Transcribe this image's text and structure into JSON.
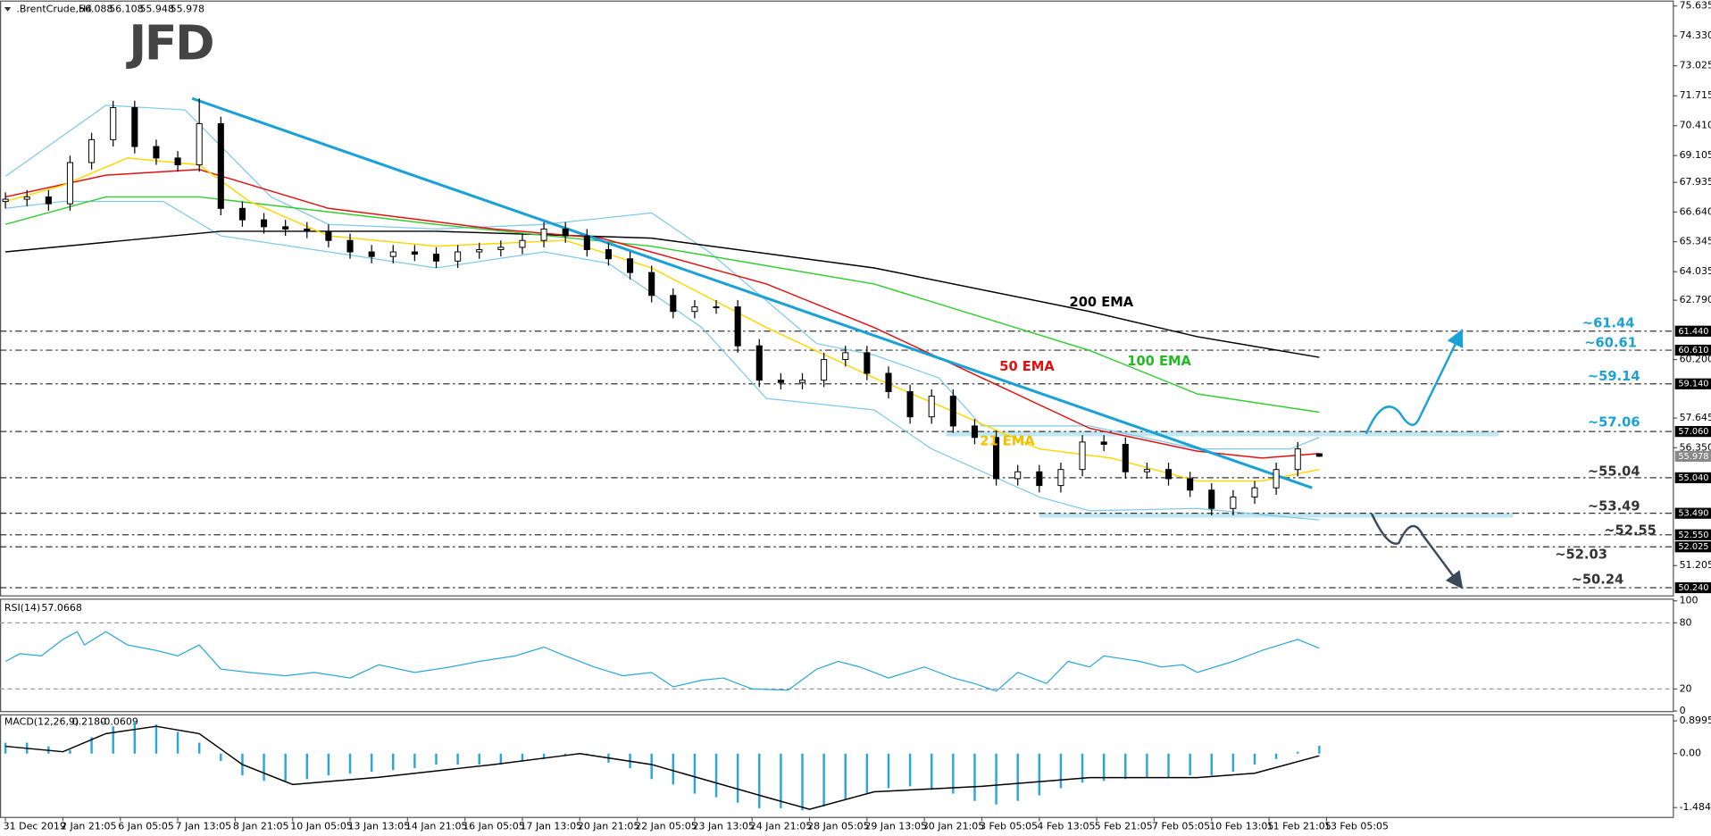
{
  "chart_data": [
    {
      "type": "candlestick",
      "symbol": ".BrentCrude,H4",
      "header_values": [
        56.088,
        56.108,
        55.948,
        55.978
      ],
      "logo": "JFD",
      "x": [
        0,
        3,
        6,
        9,
        12,
        15,
        18,
        21,
        24,
        27,
        30,
        33,
        36,
        39,
        42,
        45,
        48,
        51,
        54,
        57,
        60,
        63,
        66,
        69,
        72,
        75,
        78,
        81,
        84,
        87,
        90,
        93,
        96,
        99,
        102,
        105,
        108,
        111,
        114,
        117,
        120,
        123,
        126,
        129,
        132,
        135,
        138,
        141,
        144,
        147,
        150,
        153,
        156,
        159,
        162,
        165,
        168,
        171,
        174,
        177,
        180,
        183
      ],
      "open": [
        67.1,
        67.2,
        67.3,
        67.0,
        68.8,
        69.8,
        71.2,
        69.5,
        69.0,
        68.7,
        70.5,
        66.8,
        66.3,
        66.0,
        65.9,
        65.8,
        65.4,
        64.9,
        64.7,
        64.9,
        64.8,
        64.5,
        64.9,
        65.0,
        65.1,
        65.4,
        65.9,
        65.6,
        65.0,
        64.6,
        64.0,
        63.0,
        62.3,
        62.5,
        62.5,
        60.8,
        59.3,
        59.2,
        59.3,
        60.2,
        60.5,
        59.6,
        58.8,
        57.7,
        58.6,
        57.3,
        56.8,
        55.0,
        55.3,
        54.7,
        55.4,
        56.6,
        56.5,
        55.3,
        55.4,
        55.0,
        54.5,
        53.7,
        54.2,
        54.6,
        55.4,
        56.088
      ],
      "high": [
        67.5,
        67.6,
        67.6,
        69.1,
        70.1,
        71.5,
        71.5,
        69.8,
        69.3,
        71.6,
        70.8,
        67.1,
        66.6,
        66.3,
        66.2,
        66.1,
        65.7,
        65.2,
        65.2,
        65.2,
        65.1,
        65.2,
        65.3,
        65.4,
        65.7,
        66.2,
        66.2,
        65.9,
        65.3,
        64.9,
        64.3,
        63.3,
        62.8,
        62.8,
        62.8,
        61.1,
        59.6,
        59.6,
        60.5,
        60.8,
        60.8,
        59.9,
        59.1,
        58.9,
        58.9,
        57.6,
        57.1,
        55.6,
        55.6,
        55.7,
        56.9,
        56.9,
        56.8,
        55.7,
        55.7,
        55.3,
        54.8,
        54.5,
        54.9,
        55.7,
        56.6,
        56.108
      ],
      "low": [
        66.8,
        66.9,
        66.7,
        66.7,
        68.5,
        69.5,
        69.2,
        68.7,
        68.4,
        68.4,
        66.5,
        66.0,
        65.7,
        65.6,
        65.5,
        65.1,
        64.6,
        64.4,
        64.4,
        64.5,
        64.2,
        64.2,
        64.6,
        64.7,
        64.8,
        65.1,
        65.3,
        64.7,
        64.3,
        63.7,
        62.7,
        62.0,
        62.0,
        62.2,
        60.5,
        59.0,
        58.9,
        58.9,
        59.0,
        59.9,
        59.3,
        58.5,
        57.4,
        57.4,
        57.0,
        56.5,
        54.7,
        54.7,
        54.4,
        54.4,
        55.1,
        56.2,
        55.0,
        55.0,
        54.7,
        54.2,
        53.4,
        53.4,
        53.9,
        54.3,
        55.1,
        55.948
      ],
      "close": [
        67.2,
        67.3,
        67.0,
        68.8,
        69.8,
        71.2,
        69.5,
        69.0,
        68.7,
        70.5,
        66.8,
        66.3,
        66.0,
        65.9,
        65.8,
        65.4,
        64.9,
        64.7,
        64.9,
        64.8,
        64.5,
        64.9,
        65.0,
        65.1,
        65.4,
        65.9,
        65.6,
        65.0,
        64.6,
        64.0,
        63.0,
        62.3,
        62.5,
        62.5,
        60.8,
        59.3,
        59.2,
        59.3,
        60.2,
        60.5,
        59.6,
        58.8,
        57.7,
        58.6,
        57.3,
        56.8,
        55.0,
        55.3,
        54.7,
        55.4,
        56.6,
        56.5,
        55.3,
        55.4,
        55.0,
        54.5,
        53.7,
        54.2,
        54.6,
        55.4,
        56.3,
        55.978
      ],
      "up_color": "#ffffff",
      "down_color": "#000000",
      "xlim": [
        0,
        233
      ],
      "xticks": [
        {
          "value": 0,
          "label": "31 Dec 2019"
        },
        {
          "value": 8,
          "label": "2 Jan 21:05"
        },
        {
          "value": 16,
          "label": "6 Jan 05:05"
        },
        {
          "value": 24,
          "label": "7 Jan 13:05"
        },
        {
          "value": 32,
          "label": "8 Jan 21:05"
        },
        {
          "value": 40,
          "label": "10 Jan 05:05"
        },
        {
          "value": 48,
          "label": "13 Jan 13:05"
        },
        {
          "value": 56,
          "label": "14 Jan 21:05"
        },
        {
          "value": 64,
          "label": "16 Jan 05:05"
        },
        {
          "value": 72,
          "label": "17 Jan 13:05"
        },
        {
          "value": 80,
          "label": "20 Jan 21:05"
        },
        {
          "value": 88,
          "label": "22 Jan 05:05"
        },
        {
          "value": 96,
          "label": "23 Jan 13:05"
        },
        {
          "value": 104,
          "label": "24 Jan 21:05"
        },
        {
          "value": 112,
          "label": "28 Jan 05:05"
        },
        {
          "value": 120,
          "label": "29 Jan 13:05"
        },
        {
          "value": 128,
          "label": "30 Jan 21:05"
        },
        {
          "value": 136,
          "label": "3 Feb 05:05"
        },
        {
          "value": 144,
          "label": "4 Feb 13:05"
        },
        {
          "value": 152,
          "label": "5 Feb 21:05"
        },
        {
          "value": 160,
          "label": "7 Feb 05:05"
        },
        {
          "value": 168,
          "label": "10 Feb 13:05"
        },
        {
          "value": 176,
          "label": "11 Feb 21:05"
        },
        {
          "value": 184,
          "label": "13 Feb 05:05"
        }
      ],
      "ylim": [
        50.24,
        75.635
      ],
      "yticks": [
        75.635,
        {
          "value": 74.33,
          "label": "74.330"
        },
        73.025,
        71.715,
        {
          "value": 70.41,
          "label": "70.410"
        },
        69.105,
        67.935,
        {
          "value": 66.64,
          "label": "66.640"
        },
        65.345,
        64.035,
        {
          "value": 62.79,
          "label": "62.790"
        },
        {
          "value": 60.2,
          "label": "60.200"
        },
        57.645,
        {
          "value": 56.35,
          "label": "56.350"
        },
        51.205
      ],
      "overlays": [
        {
          "name": "200 EMA",
          "color": "#000000",
          "label_color": "#000000",
          "x": [
            0,
            30,
            60,
            90,
            121,
            151,
            166,
            183
          ],
          "values": [
            64.9,
            65.8,
            65.8,
            65.5,
            64.2,
            62.3,
            61.2,
            60.3
          ]
        },
        {
          "name": "100 EMA",
          "color": "#33cc33",
          "label_color": "#22bb22",
          "x": [
            0,
            14,
            27,
            60,
            90,
            121,
            151,
            166,
            183
          ],
          "values": [
            66.1,
            67.3,
            67.3,
            66.1,
            65.15,
            63.5,
            60.6,
            58.7,
            57.9
          ]
        },
        {
          "name": "50 EMA",
          "color": "#e01010",
          "label_color": "#e01010",
          "x": [
            0,
            14,
            27,
            45,
            68,
            83,
            106,
            121,
            136,
            151,
            166,
            175,
            183
          ],
          "values": [
            67.3,
            68.25,
            68.5,
            66.8,
            65.9,
            65.5,
            63.5,
            61.6,
            59.4,
            57.2,
            56.2,
            55.9,
            56.1
          ]
        },
        {
          "name": "21 EMA",
          "color": "#ffd700",
          "label_color": "#f0c000",
          "x": [
            0,
            8,
            17,
            27,
            34,
            45,
            60,
            78,
            90,
            106,
            121,
            133,
            144,
            154,
            166,
            175,
            183
          ],
          "values": [
            67.1,
            67.8,
            69.0,
            68.7,
            67.1,
            65.6,
            65.15,
            65.4,
            64.2,
            61.6,
            59.4,
            57.8,
            56.3,
            55.9,
            54.9,
            54.9,
            55.4
          ]
        }
      ],
      "bands": [
        {
          "color": "#7ec8ea",
          "x": [
            0,
            14,
            25,
            37,
            45,
            60,
            75,
            90,
            98,
            113,
            121,
            130,
            136,
            151,
            166,
            179,
            183
          ],
          "values": [
            68.2,
            71.3,
            71.1,
            67.3,
            66.1,
            65.9,
            66.1,
            66.6,
            64.9,
            60.9,
            60.4,
            59.4,
            57.3,
            57.3,
            56.3,
            56.3,
            56.8
          ]
        },
        {
          "color": "#7ec8ea",
          "x": [
            0,
            8,
            22,
            30,
            45,
            60,
            75,
            84,
            97,
            106,
            121,
            129,
            144,
            151,
            166,
            183
          ],
          "values": [
            66.8,
            67.1,
            67.1,
            65.6,
            64.9,
            64.2,
            64.9,
            64.4,
            61.6,
            58.5,
            58.0,
            56.3,
            54.2,
            53.6,
            53.7,
            53.2
          ]
        }
      ],
      "trendline": {
        "color": "#1ba1d6",
        "x": [
          26,
          182
        ],
        "values": [
          71.6,
          54.6
        ]
      },
      "zones": [
        {
          "color": "#a8dcec",
          "xlim": [
            131,
            208
          ],
          "ylim": [
            56.85,
            57.06
          ]
        },
        {
          "color": "#a8dcec",
          "xlim": [
            144,
            210
          ],
          "ylim": [
            53.3,
            53.49
          ]
        }
      ],
      "levels": {
        "values": [
          61.44,
          60.61,
          59.14,
          57.06,
          55.04,
          53.49,
          52.55,
          52.025,
          50.24
        ],
        "value_labels": [
          "61.440",
          "60.610",
          "59.140",
          "57.060",
          "55.040",
          "53.490",
          "52.550",
          "52.025",
          "50.240"
        ],
        "notes": [
          "~61.44",
          "~60.61",
          "~59.14",
          "~57.06",
          "~55.04",
          "~53.49",
          "~52.55",
          "~52.03",
          "~50.24"
        ],
        "note_colors": [
          "#1ba1d6",
          "#1ba1d6",
          "#1ba1d6",
          "#1ba1d6",
          "#333333",
          "#333333",
          "#333333",
          "#333333",
          "#333333"
        ]
      },
      "last_price": 55.978
    },
    {
      "type": "line",
      "title": "RSI(14)",
      "value": 57.0668,
      "color": "#2aa7d8",
      "x": [
        0,
        2,
        5,
        8,
        10,
        11,
        14,
        17,
        21,
        24,
        27,
        30,
        34,
        39,
        43,
        48,
        52,
        57,
        62,
        66,
        71,
        75,
        78,
        82,
        86,
        90,
        93,
        97,
        100,
        104,
        109,
        113,
        116,
        119,
        123,
        128,
        132,
        135,
        138,
        141,
        145,
        148,
        151,
        153,
        158,
        161,
        164,
        166,
        171,
        175,
        180,
        183
      ],
      "values": [
        45,
        52,
        50,
        65,
        72,
        60,
        72,
        60,
        55,
        50,
        60,
        38,
        35,
        32,
        35,
        30,
        42,
        35,
        40,
        45,
        50,
        58,
        50,
        40,
        32,
        35,
        22,
        28,
        30,
        20,
        19,
        38,
        45,
        40,
        30,
        40,
        30,
        25,
        18,
        35,
        25,
        45,
        40,
        50,
        45,
        40,
        42,
        35,
        45,
        55,
        65,
        57.0668
      ],
      "ylim": [
        0,
        100
      ],
      "yticks": [
        0,
        20,
        80,
        100
      ],
      "levels": [
        20,
        80
      ]
    },
    {
      "type": "macd",
      "title": "MACD(12,26,9)",
      "header_values": [
        {
          "value": 0.218,
          "label": "0.2180"
        },
        -0.0609
      ],
      "histogram": {
        "color": "#2aa7d8",
        "x": [
          0,
          3,
          6,
          9,
          12,
          15,
          18,
          21,
          24,
          27,
          30,
          33,
          36,
          39,
          42,
          45,
          48,
          51,
          54,
          57,
          60,
          63,
          66,
          69,
          72,
          75,
          78,
          81,
          84,
          87,
          90,
          93,
          96,
          99,
          102,
          105,
          108,
          111,
          114,
          117,
          120,
          123,
          126,
          129,
          132,
          135,
          138,
          141,
          144,
          147,
          150,
          153,
          156,
          159,
          162,
          165,
          168,
          171,
          174,
          177,
          180,
          183
        ],
        "values": [
          0.3,
          0.3,
          0.2,
          0.1,
          0.45,
          0.75,
          0.9,
          0.8,
          0.6,
          0.3,
          -0.2,
          -0.6,
          -0.75,
          -0.75,
          -0.7,
          -0.6,
          -0.55,
          -0.5,
          -0.45,
          -0.4,
          -0.3,
          -0.3,
          -0.3,
          -0.3,
          -0.2,
          -0.15,
          -0.05,
          0,
          -0.25,
          -0.4,
          -0.7,
          -0.85,
          -1.1,
          -1.2,
          -1.35,
          -1.5,
          -1.5,
          -1.56,
          -1.45,
          -1.25,
          -1.1,
          -0.95,
          -0.9,
          -1.0,
          -1.1,
          -1.3,
          -1.4,
          -1.3,
          -1.15,
          -0.95,
          -0.8,
          -0.75,
          -0.7,
          -0.65,
          -0.65,
          -0.6,
          -0.6,
          -0.5,
          -0.3,
          -0.15,
          0.05,
          0.218
        ]
      },
      "signal": {
        "color": "#000000",
        "x": [
          0,
          8,
          14,
          21,
          27,
          33,
          40,
          52,
          68,
          80,
          90,
          106,
          112,
          121,
          136,
          151,
          166,
          174,
          183
        ],
        "values": [
          0.2,
          0.05,
          0.55,
          0.75,
          0.55,
          -0.3,
          -0.85,
          -0.65,
          -0.3,
          0,
          -0.3,
          -1.2,
          -1.53,
          -1.05,
          -0.9,
          -0.66,
          -0.66,
          -0.54,
          -0.0609
        ]
      },
      "ylim": [
        -1.74,
        1.05
      ],
      "yticks": [
        0.8995,
        {
          "value": 0,
          "label": "0.00"
        },
        -1.4841
      ]
    }
  ]
}
